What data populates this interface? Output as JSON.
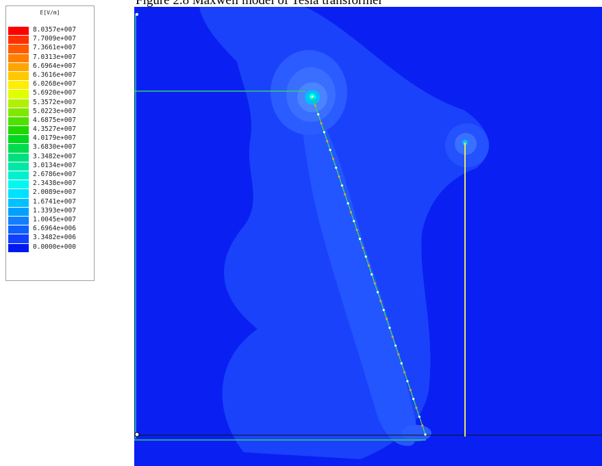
{
  "caption": "Figure 2.8 Maxwell model of Tesla transformer",
  "legend": {
    "title": "E[V/m]",
    "entries": [
      {
        "label": "8.0357e+007",
        "color": "#ff0000"
      },
      {
        "label": "7.7009e+007",
        "color": "#ff3000"
      },
      {
        "label": "7.3661e+007",
        "color": "#ff5a00"
      },
      {
        "label": "7.0313e+007",
        "color": "#ff7f00"
      },
      {
        "label": "6.6964e+007",
        "color": "#ffa500"
      },
      {
        "label": "6.3616e+007",
        "color": "#ffc800"
      },
      {
        "label": "6.0268e+007",
        "color": "#ffee00"
      },
      {
        "label": "5.6920e+007",
        "color": "#e0ff00"
      },
      {
        "label": "5.3572e+007",
        "color": "#b0f000"
      },
      {
        "label": "5.0223e+007",
        "color": "#80e800"
      },
      {
        "label": "4.6875e+007",
        "color": "#50e000"
      },
      {
        "label": "4.3527e+007",
        "color": "#20d800"
      },
      {
        "label": "4.0179e+007",
        "color": "#00d820"
      },
      {
        "label": "3.6830e+007",
        "color": "#00dc50"
      },
      {
        "label": "3.3482e+007",
        "color": "#00e080"
      },
      {
        "label": "3.0134e+007",
        "color": "#00e8a8"
      },
      {
        "label": "2.6786e+007",
        "color": "#00f0d0"
      },
      {
        "label": "2.3438e+007",
        "color": "#00f8f0"
      },
      {
        "label": "2.0089e+007",
        "color": "#00e0ff"
      },
      {
        "label": "1.6741e+007",
        "color": "#00c0ff"
      },
      {
        "label": "1.3393e+007",
        "color": "#00a0ff"
      },
      {
        "label": "1.0045e+007",
        "color": "#1080ff"
      },
      {
        "label": "6.6964e+006",
        "color": "#1060ff"
      },
      {
        "label": "3.3482e+006",
        "color": "#1040ff"
      },
      {
        "label": "0.0000e+000",
        "color": "#0018f0"
      }
    ]
  },
  "colors": {
    "field_background": "#0a20f2",
    "field_light": "#1e50ff",
    "field_lighter": "#3270ff",
    "conductor": "#e8e860",
    "boundary": "#30d070",
    "hotspot": "#00ffd0"
  }
}
